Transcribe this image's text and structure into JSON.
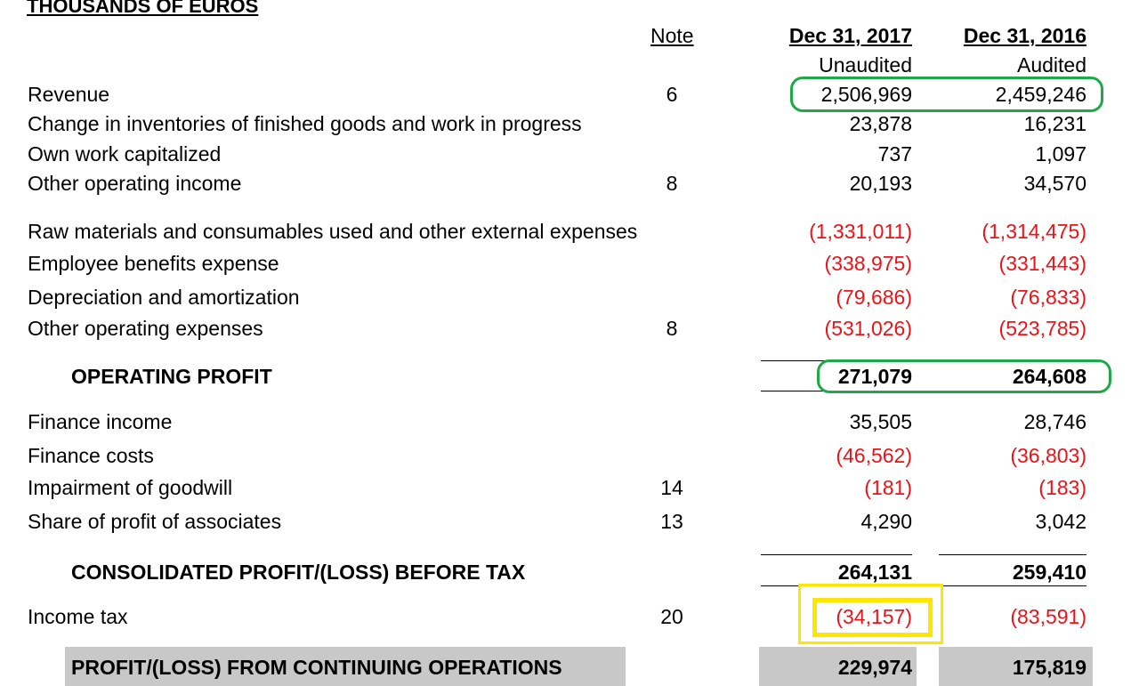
{
  "title": "THOUSANDS OF EUROS",
  "headers": {
    "note": "Note",
    "col1_date": "Dec 31, 2017",
    "col1_status": "Unaudited",
    "col2_date": "Dec 31, 2016",
    "col2_status": "Audited"
  },
  "rows": [
    {
      "label": "Revenue",
      "note": "6",
      "v2017": "2,506,969",
      "v2016": "2,459,246"
    },
    {
      "label": "Change in inventories of finished goods and work in progress",
      "note": "",
      "v2017": "23,878",
      "v2016": "16,231"
    },
    {
      "label": "Own work capitalized",
      "note": "",
      "v2017": "737",
      "v2016": "1,097"
    },
    {
      "label": "Other operating income",
      "note": "8",
      "v2017": "20,193",
      "v2016": "34,570"
    },
    {
      "label": "Raw materials and consumables used and other external expenses",
      "note": "",
      "v2017": "(1,331,011)",
      "v2016": "(1,314,475)"
    },
    {
      "label": "Employee benefits expense",
      "note": "",
      "v2017": "(338,975)",
      "v2016": "(331,443)"
    },
    {
      "label": "Depreciation and amortization",
      "note": "",
      "v2017": "(79,686)",
      "v2016": "(76,833)"
    },
    {
      "label": "Other operating expenses",
      "note": "8",
      "v2017": "(531,026)",
      "v2016": "(523,785)"
    },
    {
      "label": "OPERATING PROFIT",
      "note": "",
      "v2017": "271,079",
      "v2016": "264,608"
    },
    {
      "label": "Finance income",
      "note": "",
      "v2017": "35,505",
      "v2016": "28,746"
    },
    {
      "label": "Finance costs",
      "note": "",
      "v2017": "(46,562)",
      "v2016": "(36,803)"
    },
    {
      "label": "Impairment of goodwill",
      "note": "14",
      "v2017": "(181)",
      "v2016": "(183)"
    },
    {
      "label": "Share of profit of associates",
      "note": "13",
      "v2017": "4,290",
      "v2016": "3,042"
    },
    {
      "label": "CONSOLIDATED PROFIT/(LOSS) BEFORE TAX",
      "note": "",
      "v2017": "264,131",
      "v2016": "259,410"
    },
    {
      "label": "Income tax",
      "note": "20",
      "v2017": "(34,157)",
      "v2016": "(83,591)"
    },
    {
      "label": "PROFIT/(LOSS) FROM CONTINUING OPERATIONS",
      "note": "",
      "v2017": "229,974",
      "v2016": "175,819"
    }
  ],
  "colors": {
    "negative": "#e8141a",
    "highlight_green": "#1ea84a",
    "highlight_yellow": "#ffe600",
    "total_bar": "#c8c8c8"
  }
}
